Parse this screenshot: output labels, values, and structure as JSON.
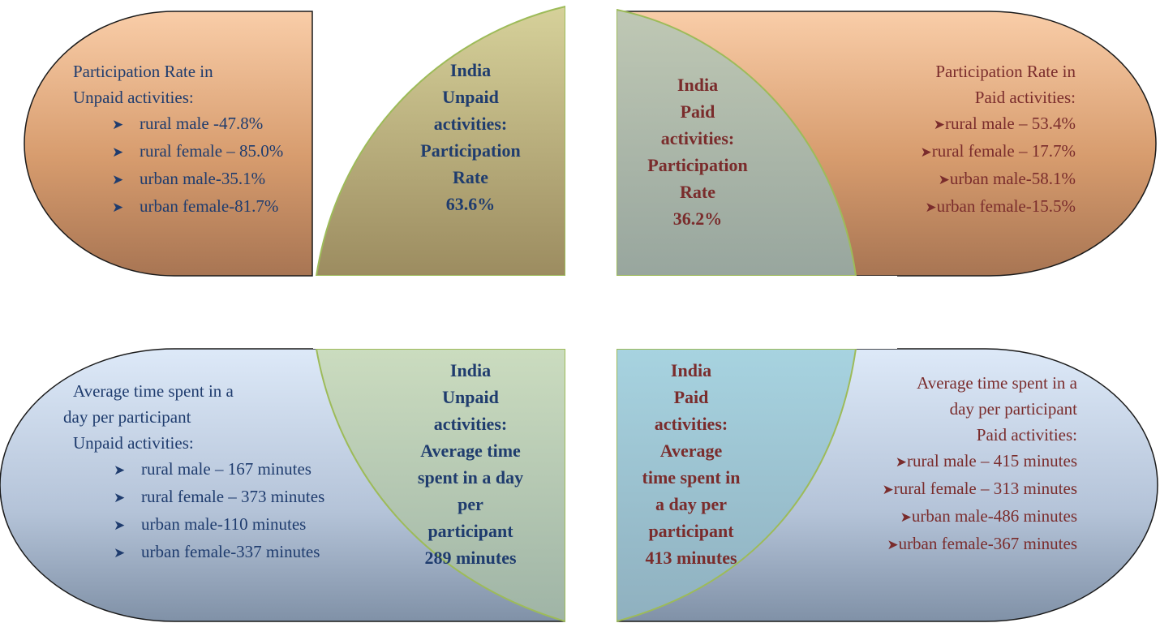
{
  "quadrants": {
    "top_left": {
      "heading": [
        "Participation Rate in",
        "Unpaid activities:"
      ],
      "items": [
        "rural male -47.8%",
        "rural female – 85.0%",
        "urban male-35.1%",
        "urban female-81.7%"
      ]
    },
    "top_center_left": {
      "lines": [
        "India",
        "Unpaid",
        "activities:",
        "Participation",
        "Rate",
        "63.6%"
      ]
    },
    "top_center_right": {
      "lines": [
        "India",
        "Paid",
        "activities:",
        "Participation",
        "Rate",
        "36.2%"
      ]
    },
    "top_right": {
      "heading": [
        "Participation Rate in",
        "Paid activities:"
      ],
      "items": [
        "rural male – 53.4%",
        "rural female – 17.7%",
        "urban male-58.1%",
        "urban female-15.5%"
      ]
    },
    "bottom_left": {
      "heading": [
        "Average time spent in a",
        "day per participant",
        "Unpaid activities:"
      ],
      "items": [
        "rural male – 167 minutes",
        "rural female – 373 minutes",
        "urban male-110 minutes",
        "urban female-337 minutes"
      ]
    },
    "bottom_center_left": {
      "lines": [
        "India",
        "Unpaid",
        "activities:",
        "Average time",
        "spent in a day",
        "per",
        "participant",
        "289 minutes"
      ]
    },
    "bottom_center_right": {
      "lines": [
        "India",
        "Paid",
        "activities:",
        "Average",
        "time spent in",
        "a day per",
        "participant",
        "413 minutes"
      ]
    },
    "bottom_right": {
      "heading": [
        "Average time spent in a",
        "day per participant",
        "Paid activities:"
      ],
      "items": [
        "rural male – 415 minutes",
        "rural female – 313 minutes",
        "urban male-486 minutes",
        "urban female-367 minutes"
      ]
    }
  },
  "bullet_icon": "arrowhead-bullet-icon",
  "colors": {
    "navy_text": "#1f3c6e",
    "maroon_text": "#7a2c2c",
    "peach_top": "#f8caa6",
    "peach_bottom": "#b27c54",
    "blue_top": "#dbe7f6",
    "blue_bottom": "#8494a8",
    "overlap_green": "#9dbb59",
    "overlap_teal": "#7fc4d6"
  }
}
